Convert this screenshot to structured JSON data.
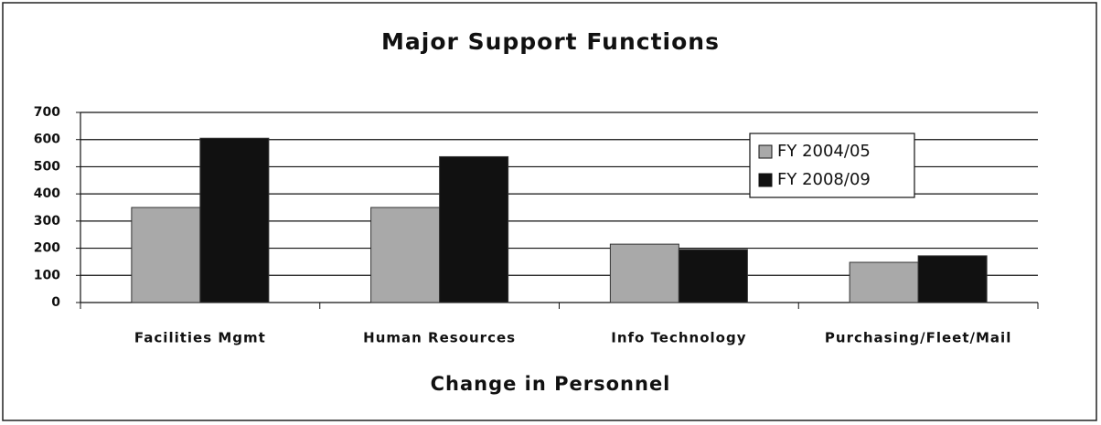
{
  "chart_data": {
    "type": "bar",
    "title": "Major Support Functions",
    "x_label": "Change in Personnel",
    "categories": [
      "Facilities Mgmt",
      "Human Resources",
      "Info Technology",
      "Purchasing/Fleet/Mail"
    ],
    "series": [
      {
        "name": "FY 2004/05",
        "color": "#a9a9a9",
        "values": [
          350,
          350,
          215,
          148
        ]
      },
      {
        "name": "FY 2008/09",
        "color": "#111111",
        "values": [
          605,
          537,
          195,
          172
        ]
      }
    ],
    "ylim": [
      0,
      700
    ],
    "yticks": [
      0,
      100,
      200,
      300,
      400,
      500,
      600,
      700
    ],
    "grid": true,
    "legend": "upper right"
  }
}
